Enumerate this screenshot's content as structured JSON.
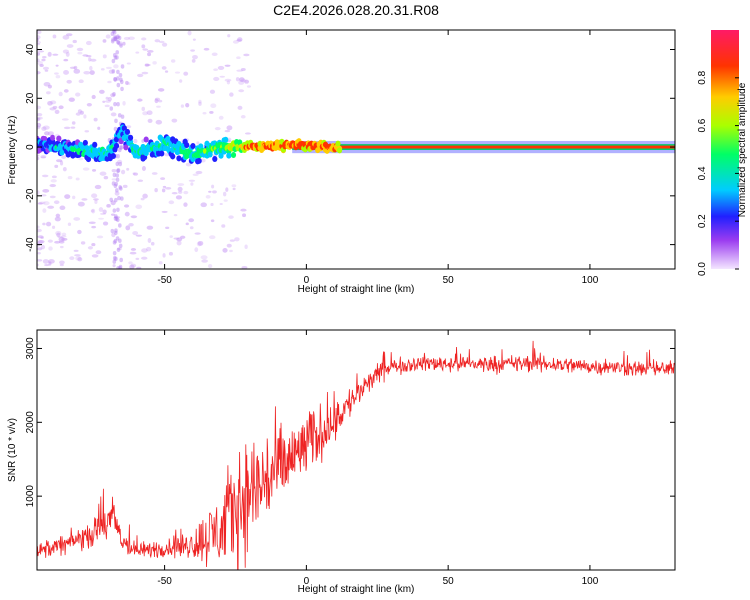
{
  "title": "C2E4.2026.028.20.31.R08",
  "chart_data": [
    {
      "type": "heatmap",
      "xlabel": "Height of straight line (km)",
      "ylabel": "Frequency (Hz)",
      "xlim": [
        -95,
        130
      ],
      "ylim": [
        -50,
        48
      ],
      "xticks": [
        -50,
        0,
        50,
        100
      ],
      "yticks": [
        -40,
        -20,
        0,
        20,
        40
      ],
      "colorbar": {
        "label": "Normalized spectral amplitude",
        "ticks": [
          "0.0",
          "0.2",
          "0.4",
          "0.6",
          "0.8"
        ],
        "range": [
          0,
          1
        ],
        "colors": [
          "#f4e6ff",
          "#9b3cf0",
          "#2020ff",
          "#00ccff",
          "#00ff66",
          "#aaff00",
          "#ffcc00",
          "#ff3300",
          "#ff1a66"
        ]
      },
      "ridge": {
        "description_points": [
          {
            "x": -95,
            "y": 1,
            "amp": 0.3
          },
          {
            "x": -80,
            "y": -1,
            "amp": 0.45
          },
          {
            "x": -70,
            "y": -3,
            "amp": 0.45
          },
          {
            "x": -65,
            "y": 6,
            "amp": 0.4
          },
          {
            "x": -60,
            "y": -2,
            "amp": 0.45
          },
          {
            "x": -50,
            "y": 1,
            "amp": 0.5
          },
          {
            "x": -40,
            "y": -3,
            "amp": 0.5
          },
          {
            "x": -30,
            "y": 0,
            "amp": 0.55
          },
          {
            "x": -20,
            "y": 0,
            "amp": 0.85
          },
          {
            "x": -5,
            "y": 1,
            "amp": 0.9
          },
          {
            "x": 10,
            "y": 0,
            "amp": 0.9
          },
          {
            "x": 130,
            "y": 0,
            "amp": 1.0
          }
        ]
      }
    },
    {
      "type": "line",
      "xlabel": "Height of straight line (km)",
      "ylabel": "SNR (10 * v/v)",
      "xlim": [
        -95,
        130
      ],
      "ylim": [
        0,
        3250
      ],
      "xticks": [
        -50,
        0,
        50,
        100
      ],
      "yticks": [
        1000,
        2000,
        3000
      ],
      "series_color": "#ee2222",
      "envelope": {
        "x": [
          -95,
          -85,
          -75,
          -68,
          -65,
          -60,
          -50,
          -40,
          -30,
          -25,
          -20,
          -15,
          -10,
          -5,
          0,
          5,
          10,
          15,
          20,
          25,
          30,
          35,
          40,
          50,
          60,
          70,
          80,
          90,
          100,
          110,
          120,
          130
        ],
        "mean": [
          250,
          350,
          500,
          700,
          400,
          250,
          300,
          350,
          550,
          850,
          1050,
          1200,
          1350,
          1500,
          1700,
          1850,
          2050,
          2250,
          2450,
          2650,
          2750,
          2780,
          2800,
          2800,
          2790,
          2790,
          2800,
          2780,
          2760,
          2740,
          2720,
          2720
        ],
        "amp": [
          120,
          150,
          200,
          350,
          200,
          120,
          150,
          250,
          650,
          900,
          900,
          850,
          700,
          600,
          500,
          450,
          350,
          250,
          200,
          150,
          120,
          120,
          130,
          130,
          130,
          130,
          140,
          130,
          120,
          120,
          120,
          120
        ]
      }
    }
  ]
}
